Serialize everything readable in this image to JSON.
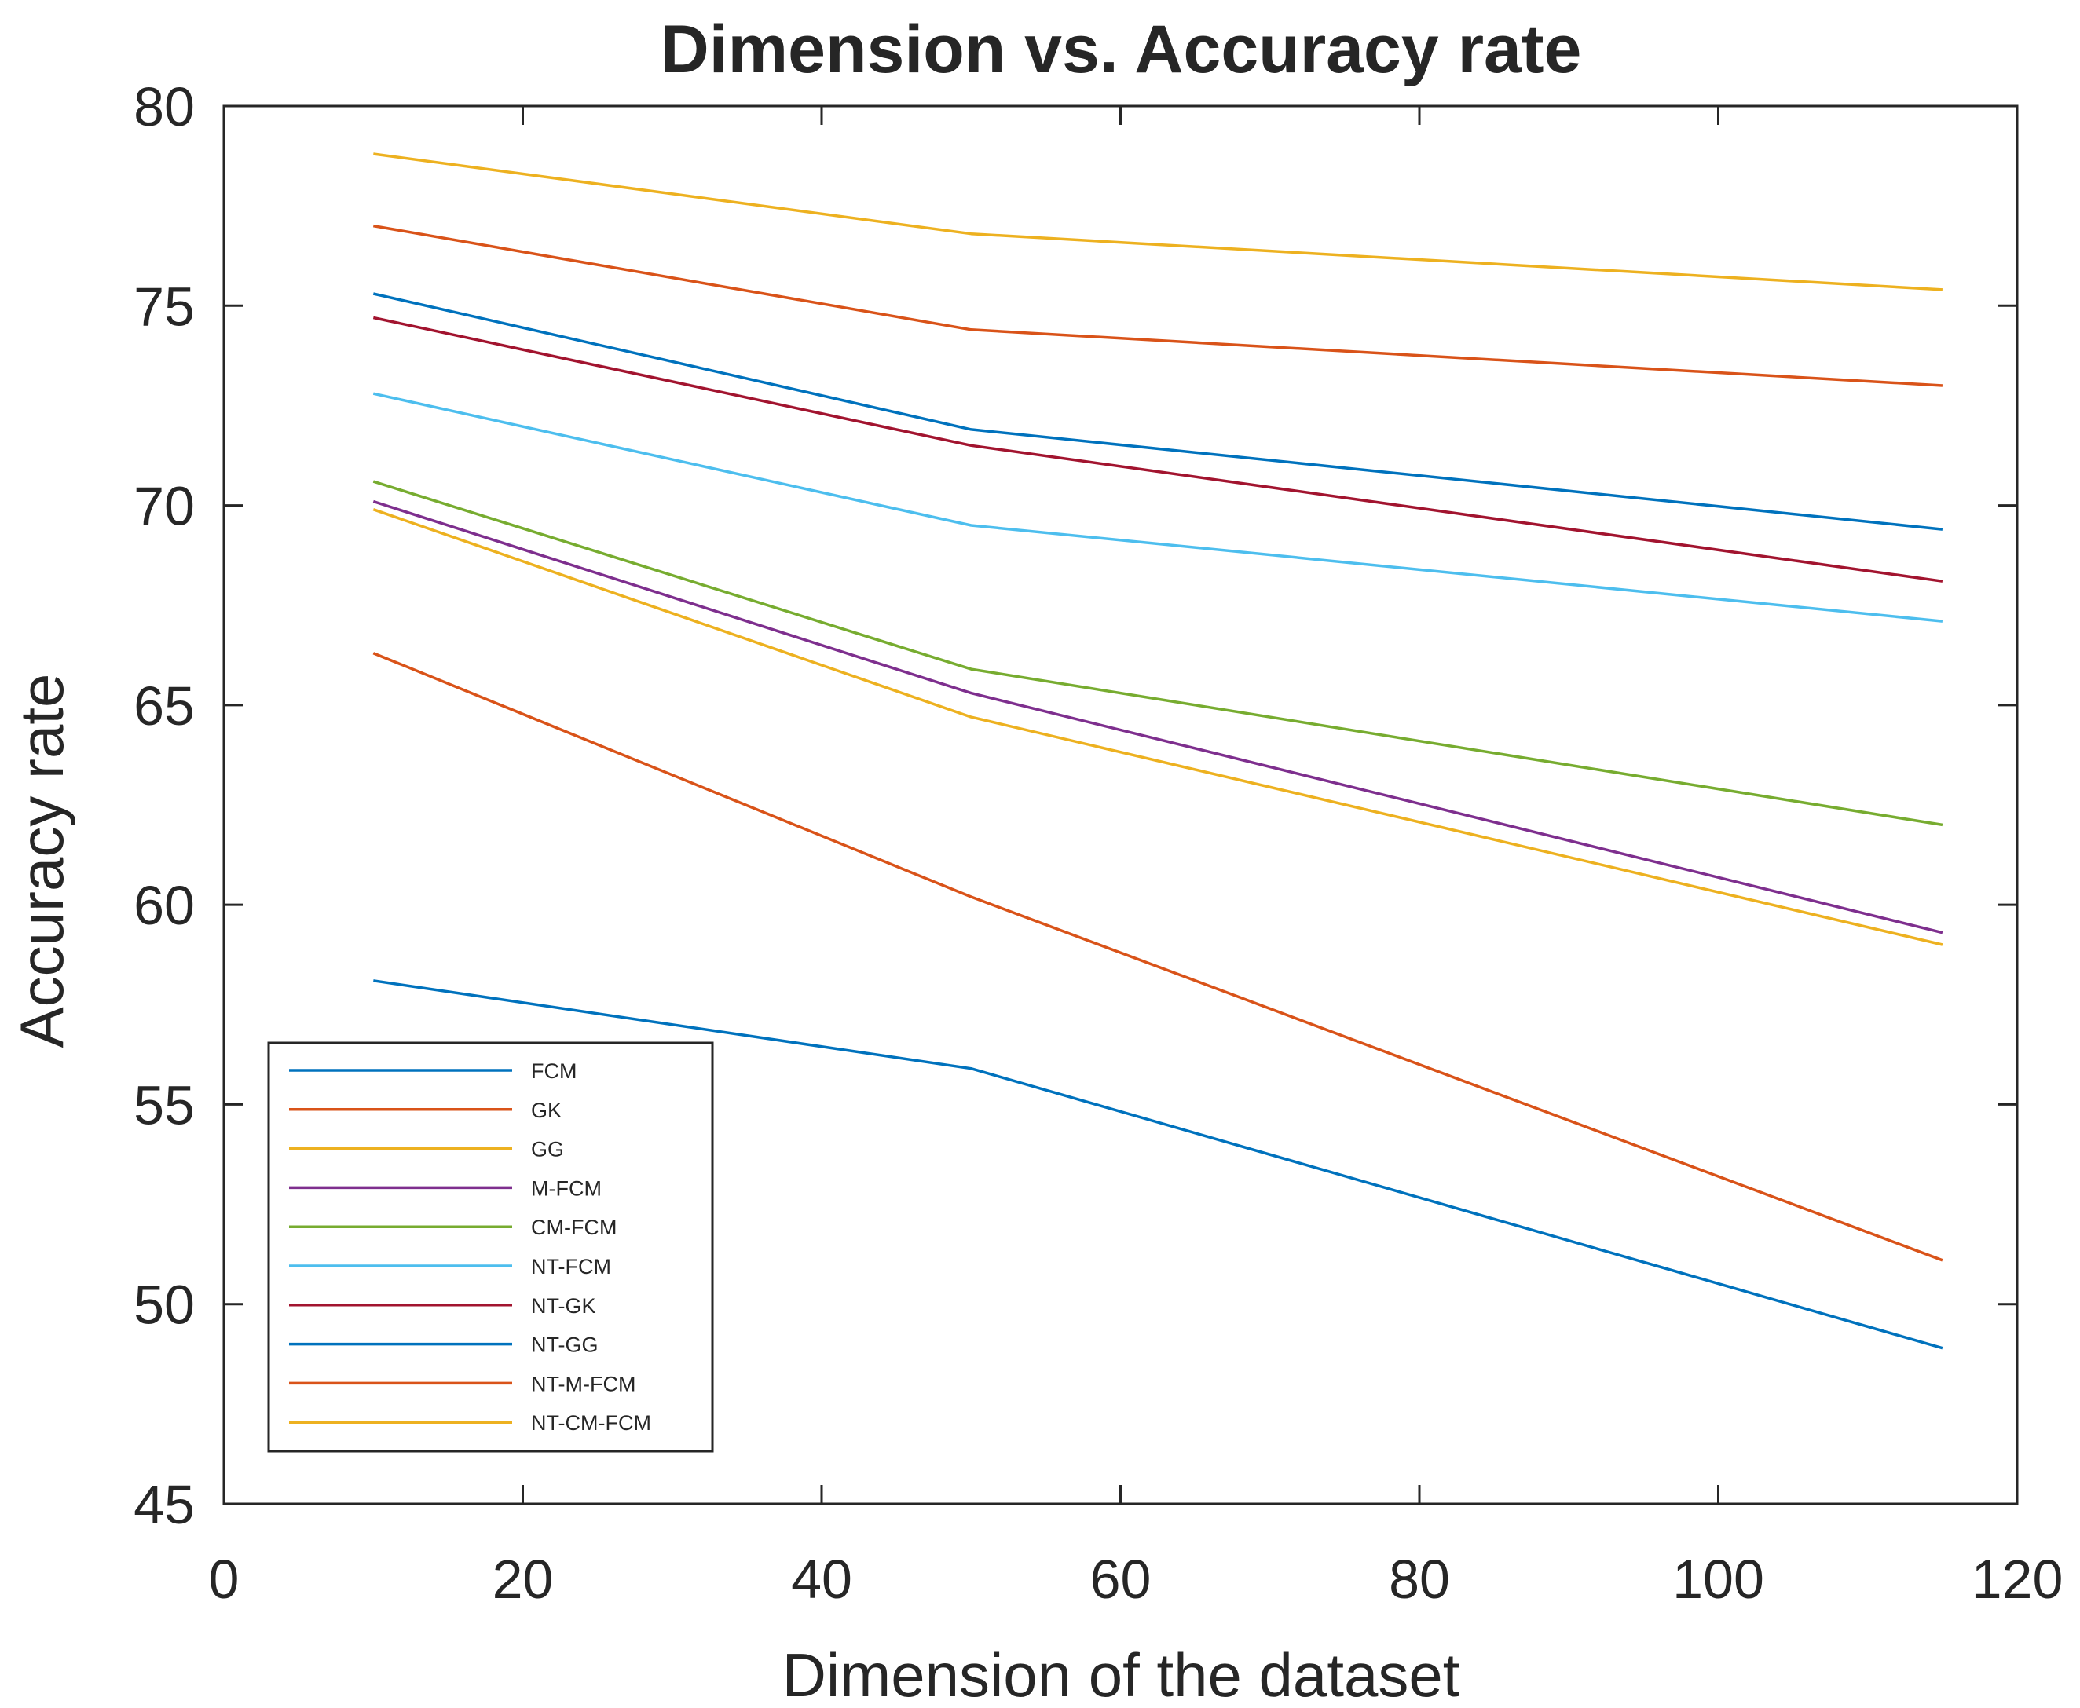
{
  "chart_data": {
    "type": "line",
    "title": "Dimension vs. Accuracy rate",
    "xlabel": "Dimension of the dataset",
    "ylabel": "Accuracy rate",
    "xlim": [
      0,
      120
    ],
    "ylim": [
      45,
      80
    ],
    "xticks": [
      "0",
      "20",
      "40",
      "60",
      "80",
      "100",
      "120"
    ],
    "yticks": [
      "45",
      "50",
      "55",
      "60",
      "65",
      "70",
      "75",
      "80"
    ],
    "grid": false,
    "legend_position": "bottom-left",
    "x": [
      10,
      50,
      115
    ],
    "series": [
      {
        "name": "FCM",
        "color": "#0072BD",
        "values": [
          58.1,
          55.9,
          48.9
        ]
      },
      {
        "name": "GK",
        "color": "#D95319",
        "values": [
          66.3,
          60.2,
          51.1
        ]
      },
      {
        "name": "GG",
        "color": "#EDB120",
        "values": [
          69.9,
          64.7,
          59.0
        ]
      },
      {
        "name": "M-FCM",
        "color": "#7E2F8E",
        "values": [
          70.1,
          65.3,
          59.3
        ]
      },
      {
        "name": "CM-FCM",
        "color": "#77AC30",
        "values": [
          70.6,
          65.9,
          62.0
        ]
      },
      {
        "name": "NT-FCM",
        "color": "#4DBEEE",
        "values": [
          72.8,
          69.5,
          67.1
        ]
      },
      {
        "name": "NT-GK",
        "color": "#A2142F",
        "values": [
          74.7,
          71.5,
          68.1
        ]
      },
      {
        "name": "NT-GG",
        "color": "#0072BD",
        "values": [
          75.3,
          71.9,
          69.4
        ]
      },
      {
        "name": "NT-M-FCM",
        "color": "#D95319",
        "values": [
          77.0,
          74.4,
          73.0
        ]
      },
      {
        "name": "NT-CM-FCM",
        "color": "#EDB120",
        "values": [
          78.8,
          76.8,
          75.4
        ]
      }
    ]
  }
}
